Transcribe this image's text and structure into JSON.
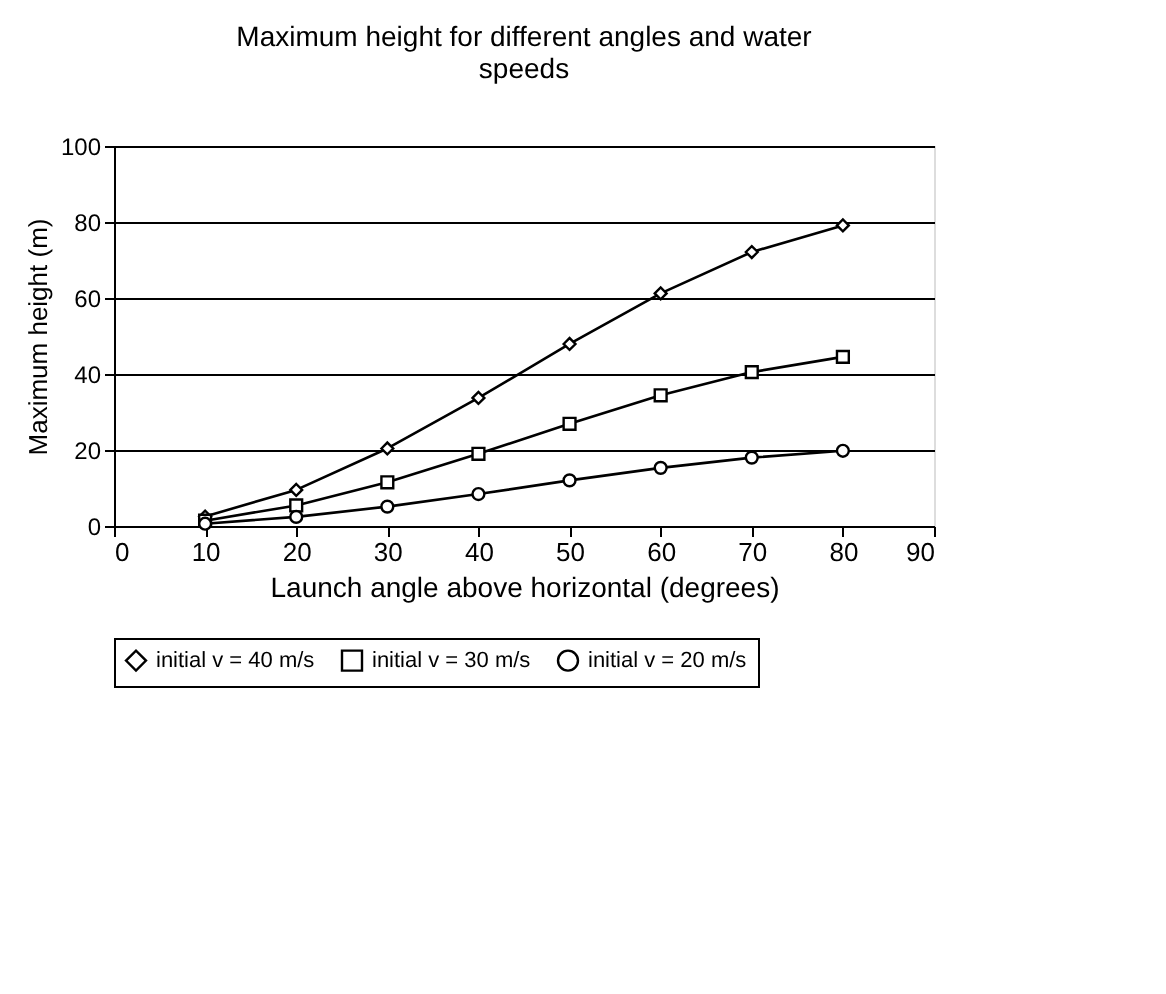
{
  "chart_data": {
    "type": "line",
    "title": "Maximum height for different angles and water speeds",
    "xlabel": "Launch angle above horizontal (degrees)",
    "ylabel": "Maximum height (m)",
    "x": [
      10,
      20,
      30,
      40,
      50,
      60,
      70,
      80
    ],
    "series": [
      {
        "name": "initial v = 40 m/s",
        "color": "#000000",
        "marker": "diamond",
        "values": [
          2.5,
          9.5,
          20.4,
          33.7,
          47.9,
          61.2,
          72.1,
          79.1
        ]
      },
      {
        "name": "initial v = 30 m/s",
        "color": "#000000",
        "marker": "square",
        "values": [
          1.4,
          5.4,
          11.5,
          19,
          26.9,
          34.4,
          40.5,
          44.5
        ]
      },
      {
        "name": "initial v = 20 m/s",
        "color": "#000000",
        "marker": "circle",
        "values": [
          0.6,
          2.4,
          5.1,
          8.4,
          12,
          15.3,
          18,
          19.8
        ]
      }
    ],
    "xlim": [
      0,
      90
    ],
    "xticks": [
      0,
      10,
      20,
      30,
      40,
      50,
      60,
      70,
      80,
      90
    ],
    "ylim": [
      0,
      100
    ],
    "yticks": [
      0,
      20,
      40,
      60,
      80,
      100
    ],
    "grid": "y",
    "legend": "bottom",
    "line_style": "solid"
  }
}
